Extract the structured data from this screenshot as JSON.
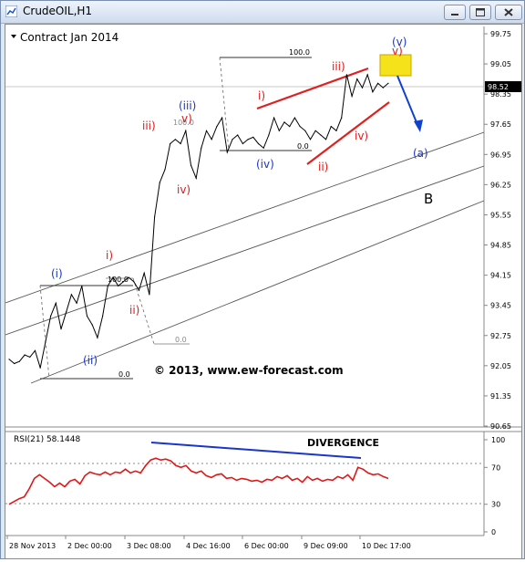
{
  "window": {
    "title": "CrudeOIL,H1"
  },
  "chart_data": [
    {
      "type": "line",
      "title": "Contract Jan 2014",
      "price_label": "98.52",
      "copyright": "© 2013, www.ew-forecast.com",
      "ylim": [
        90.65,
        99.75
      ],
      "y_ticks": [
        "99.75",
        "99.05",
        "98.35",
        "97.65",
        "96.95",
        "96.25",
        "95.55",
        "94.85",
        "94.15",
        "93.45",
        "92.75",
        "92.05",
        "91.35",
        "90.65"
      ],
      "x_ticks": [
        "28 Nov 2013",
        "2 Dec 00:00",
        "3 Dec 08:00",
        "4 Dec 16:00",
        "6 Dec 00:00",
        "9 Dec 09:00",
        "10 Dec 17:00"
      ],
      "series": [
        {
          "values": [
            92.2,
            92.1,
            92.15,
            92.3,
            92.25,
            92.4,
            92.0,
            92.6,
            93.2,
            93.5,
            92.9,
            93.3,
            93.7,
            93.5,
            93.9,
            93.2,
            93.0,
            92.7,
            93.2,
            93.9,
            94.1,
            93.9,
            94.0,
            94.1,
            94.0,
            93.8,
            94.2,
            93.7,
            95.5,
            96.3,
            96.6,
            97.2,
            97.3,
            97.2,
            97.5,
            96.7,
            96.4,
            97.1,
            97.5,
            97.3,
            97.6,
            97.8,
            97.0,
            97.3,
            97.4,
            97.2,
            97.3,
            97.35,
            97.2,
            97.1,
            97.4,
            97.8,
            97.5,
            97.7,
            97.6,
            97.8,
            97.6,
            97.5,
            97.3,
            97.5,
            97.4,
            97.3,
            97.6,
            97.5,
            97.8,
            98.8,
            98.3,
            98.7,
            98.5,
            98.8,
            98.4,
            98.6,
            98.5,
            98.6
          ]
        }
      ],
      "wave_labels": [
        "(i)",
        "(ii)",
        "i)",
        "ii)",
        "iii)",
        "(iii)",
        "v)",
        "iv)",
        "(iv)",
        "i)",
        "ii)",
        "iii)",
        "iv)",
        "v)",
        "(v)",
        "(a)",
        "B"
      ],
      "fib_labels": [
        "100.0",
        "0.0",
        "100.0",
        "0.0",
        "100.0",
        "0.0"
      ]
    },
    {
      "type": "line",
      "title": "RSI(21) 58.1448",
      "annotation": "DIVERGENCE",
      "ylim": [
        0,
        100
      ],
      "y_ticks": [
        "100",
        "70",
        "30",
        "0"
      ],
      "series": [
        {
          "values": [
            30,
            33,
            36,
            38,
            47,
            58,
            62,
            58,
            54,
            49,
            53,
            49,
            55,
            57,
            52,
            61,
            65,
            63,
            62,
            65,
            62,
            65,
            64,
            68,
            64,
            66,
            64,
            72,
            78,
            80,
            78,
            79,
            77,
            72,
            70,
            72,
            66,
            64,
            66,
            61,
            59,
            62,
            63,
            58,
            59,
            56,
            58,
            57,
            55,
            56,
            54,
            57,
            56,
            60,
            58,
            61,
            56,
            58,
            54,
            60,
            56,
            58,
            55,
            57,
            56,
            60,
            58,
            62,
            56,
            70,
            68,
            64,
            62,
            63,
            60,
            58
          ]
        }
      ]
    }
  ]
}
